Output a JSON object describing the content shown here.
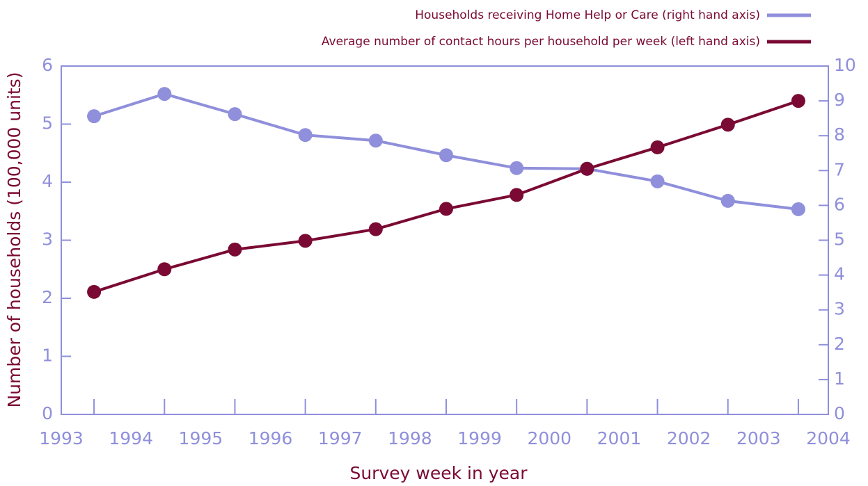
{
  "chart_data": {
    "type": "line",
    "x_label": "Survey week in year",
    "y_label": "Number of households (100,000 units)",
    "x": [
      1993.47,
      1994.48,
      1995.49,
      1996.5,
      1997.51,
      1998.52,
      1999.53,
      2000.54,
      2001.55,
      2002.56,
      2003.57
    ],
    "series": [
      {
        "name": "Households receiving Home Help or Care (right hand axis)",
        "color": "#8f8fdb",
        "axis": "y2",
        "values": [
          8.56,
          9.2,
          8.62,
          8.02,
          7.86,
          7.44,
          7.07,
          7.05,
          6.69,
          6.13,
          5.89
        ]
      },
      {
        "name": "Average number of contact hours per household per week (left hand axis)",
        "color": "#7a0a33",
        "values": [
          2.11,
          2.5,
          2.84,
          2.99,
          3.19,
          3.54,
          3.78,
          4.23,
          4.6,
          4.99,
          5.4
        ]
      }
    ],
    "xlim": [
      1993,
      2004
    ],
    "xticks": [
      1993,
      1994,
      1995,
      1996,
      1997,
      1998,
      1999,
      2000,
      2001,
      2002,
      2003,
      2004
    ],
    "ylim": [
      0,
      6
    ],
    "yticks": [
      0,
      1,
      2,
      3,
      4,
      5,
      6
    ],
    "y2lim": [
      0,
      10
    ],
    "y2ticks": [
      0,
      1,
      2,
      3,
      4,
      5,
      6,
      7,
      8,
      9,
      10
    ],
    "axis_color": "#8f8fdb"
  }
}
